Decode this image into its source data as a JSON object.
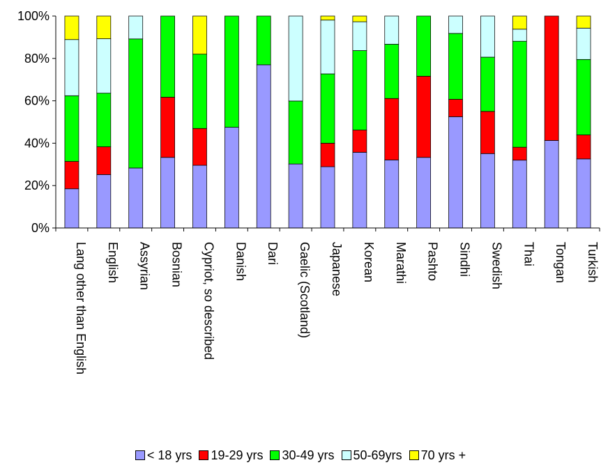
{
  "chart_data": {
    "type": "bar",
    "stacked": true,
    "percent_stacked": true,
    "categories": [
      "Lang other than English",
      "English",
      "Assyrian",
      "Bosnian",
      "Cypriot, so described",
      "Danish",
      "Dari",
      "Gaelic (Scotland)",
      "Japanese",
      "Korean",
      "Marathi",
      "Pashto",
      "Sindhi",
      "Swedish",
      "Thai",
      "Tongan",
      "Turkish"
    ],
    "series": [
      {
        "name": "< 18 yrs",
        "color": "#9999ff",
        "values": [
          18.5,
          25.2,
          28.3,
          33.3,
          29.6,
          47.5,
          77.0,
          30.2,
          28.9,
          35.7,
          32.1,
          33.3,
          52.5,
          35.1,
          32.0,
          41.3,
          32.6
        ]
      },
      {
        "name": "19-29 yrs",
        "color": "#ff0000",
        "values": [
          12.9,
          13.1,
          0.0,
          28.4,
          17.4,
          0.0,
          0.0,
          0.0,
          11.1,
          10.5,
          29.0,
          38.3,
          8.2,
          19.9,
          6.1,
          58.7,
          11.3
        ]
      },
      {
        "name": "30-49 yrs",
        "color": "#00ff00",
        "values": [
          31.0,
          25.3,
          60.9,
          38.3,
          35.1,
          52.5,
          23.0,
          29.7,
          32.7,
          37.5,
          25.6,
          28.4,
          31.1,
          25.6,
          50.0,
          0.0,
          35.6
        ]
      },
      {
        "name": "50-69yrs",
        "color": "#ccffff",
        "values": [
          26.5,
          25.7,
          10.8,
          0.0,
          0.0,
          0.0,
          0.0,
          40.1,
          25.4,
          13.6,
          13.3,
          0.0,
          8.2,
          19.4,
          5.7,
          0.0,
          14.8
        ]
      },
      {
        "name": "70 yrs +",
        "color": "#ffff00",
        "values": [
          11.1,
          10.7,
          0.0,
          0.0,
          18.0,
          0.0,
          0.0,
          0.0,
          1.9,
          2.7,
          0.0,
          0.0,
          0.0,
          0.0,
          6.2,
          0.0,
          5.7
        ]
      }
    ],
    "y_ticks": [
      "0%",
      "20%",
      "40%",
      "60%",
      "80%",
      "100%"
    ],
    "ylim": [
      0,
      100
    ],
    "grid": false,
    "legend_position": "bottom"
  }
}
